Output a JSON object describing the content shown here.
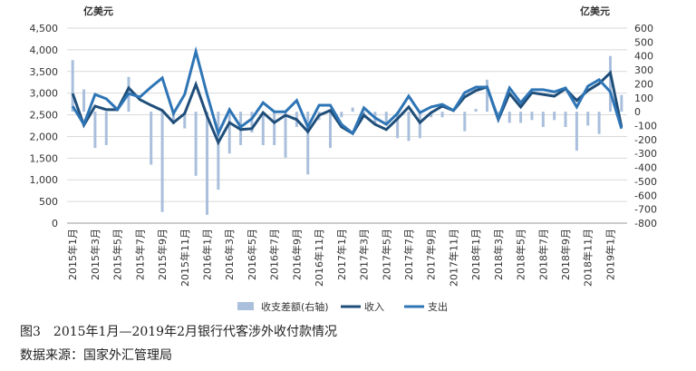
{
  "chart_data": {
    "type": "bar-line",
    "left_unit": "亿美元",
    "right_unit": "亿美元",
    "caption": "图3　2015年1月—2019年2月银行代客涉外收付款情况",
    "source": "数据来源：国家外汇管理局",
    "categories": [
      "2015年1月",
      null,
      "2015年3月",
      null,
      "2015年5月",
      null,
      "2015年7月",
      null,
      "2015年9月",
      null,
      "2015年11月",
      null,
      "2016年1月",
      null,
      "2016年3月",
      null,
      "2016年5月",
      null,
      "2016年7月",
      null,
      "2016年9月",
      null,
      "2016年11月",
      null,
      "2017年1月",
      null,
      "2017年3月",
      null,
      "2017年5月",
      null,
      "2017年7月",
      null,
      "2017年9月",
      null,
      "2017年11月",
      null,
      "2018年1月",
      null,
      "2018年3月",
      null,
      "2018年5月",
      null,
      "2018年7月",
      null,
      "2018年9月",
      null,
      "2018年11月",
      null,
      "2019年1月",
      null
    ],
    "series": [
      {
        "name": "收支差额(右轴)",
        "color": "#a9bfdc",
        "axis": "y2",
        "kind": "bar",
        "values": [
          370,
          160,
          -260,
          -240,
          0,
          250,
          0,
          -380,
          -720,
          -90,
          -120,
          -460,
          -740,
          -560,
          -300,
          -240,
          -150,
          -240,
          -240,
          -330,
          -110,
          -450,
          -60,
          -260,
          -40,
          30,
          -20,
          -100,
          -100,
          -190,
          -210,
          -190,
          -40,
          -40,
          10,
          -140,
          20,
          230,
          -30,
          -80,
          -80,
          -60,
          -110,
          -60,
          -110,
          -280,
          -100,
          -160,
          400,
          120
        ]
      },
      {
        "name": "收入",
        "color": "#1f4e79",
        "kind": "line",
        "values": [
          2990,
          2260,
          2700,
          2620,
          2620,
          3120,
          2850,
          2720,
          2600,
          2320,
          2530,
          3200,
          2470,
          1860,
          2320,
          2160,
          2180,
          2550,
          2320,
          2490,
          2390,
          2110,
          2490,
          2600,
          2220,
          2070,
          2490,
          2280,
          2160,
          2410,
          2680,
          2320,
          2550,
          2700,
          2600,
          2910,
          3060,
          3140,
          2390,
          2990,
          2680,
          3010,
          2970,
          2930,
          3100,
          2830,
          3060,
          3220,
          3470,
          2220
        ]
      },
      {
        "name": "支出",
        "color": "#2e75b6",
        "kind": "line",
        "values": [
          2700,
          2280,
          2970,
          2870,
          2620,
          2990,
          2910,
          3140,
          3350,
          2530,
          2970,
          3960,
          2970,
          2070,
          2620,
          2220,
          2410,
          2780,
          2570,
          2570,
          2830,
          2220,
          2720,
          2720,
          2280,
          2070,
          2660,
          2430,
          2280,
          2530,
          2930,
          2550,
          2680,
          2740,
          2600,
          3010,
          3140,
          3140,
          2410,
          3120,
          2780,
          3080,
          3080,
          3030,
          3120,
          2680,
          3160,
          3310,
          3030,
          2180
        ]
      }
    ],
    "ylim": [
      0,
      4500
    ],
    "yticks": [
      0,
      {
        "value": 500,
        "label": "500"
      },
      {
        "value": 1000,
        "label": "1,000"
      },
      {
        "value": 1500,
        "label": "1,500"
      },
      {
        "value": 2000,
        "label": "2,000"
      },
      {
        "value": 2500,
        "label": "2,500"
      },
      {
        "value": 3000,
        "label": "3,000"
      },
      {
        "value": 3500,
        "label": "3,500"
      },
      {
        "value": 4000,
        "label": "4,000"
      },
      {
        "value": 4500,
        "label": "4,500"
      }
    ],
    "y2lim": [
      -800,
      600
    ],
    "y2ticks": [
      -800,
      -700,
      -600,
      -500,
      -400,
      -300,
      -200,
      -100,
      0,
      100,
      200,
      300,
      400,
      500,
      600
    ],
    "grid": true
  }
}
